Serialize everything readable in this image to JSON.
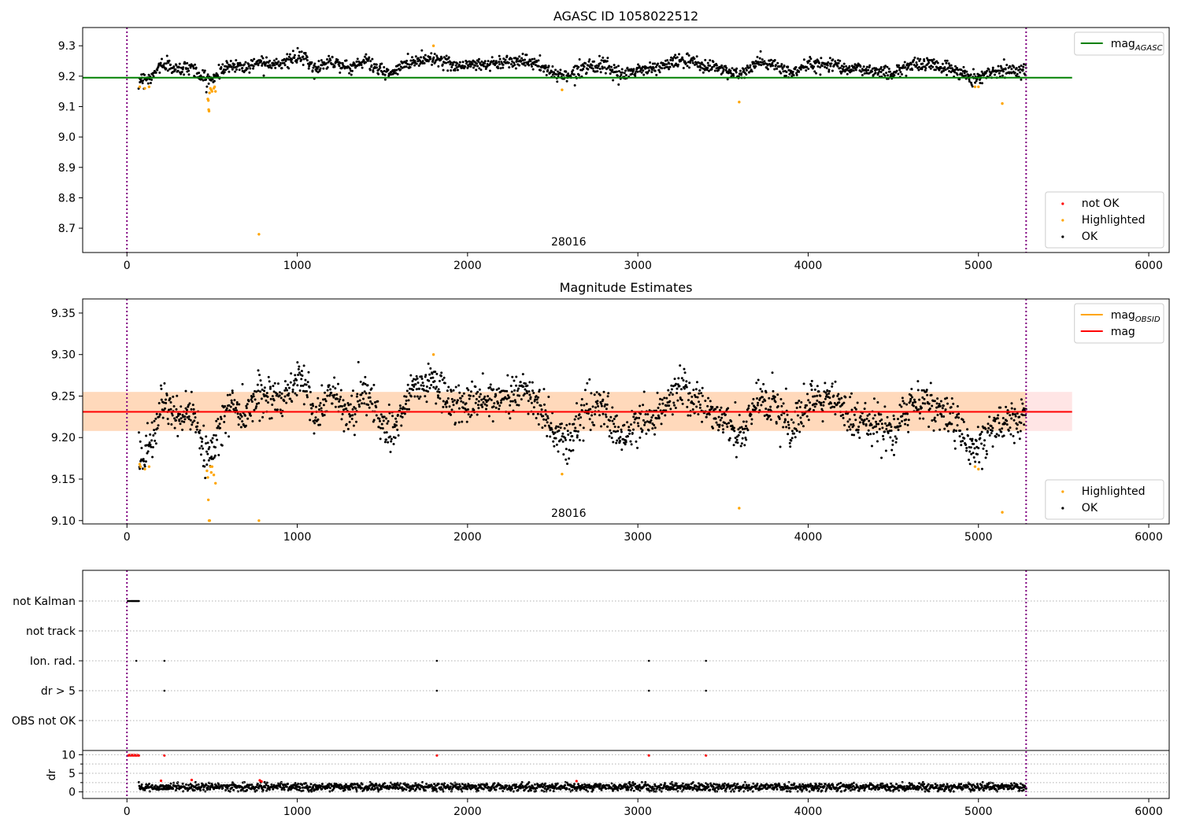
{
  "chart_data": [
    {
      "type": "scatter",
      "title": "AGASC ID 1058022512",
      "xlim": [
        -260,
        6120
      ],
      "ylim": [
        8.62,
        9.36
      ],
      "x_ticks": [
        0,
        1000,
        2000,
        3000,
        4000,
        5000,
        6000
      ],
      "y_ticks": [
        8.7,
        8.8,
        8.9,
        9.0,
        9.1,
        9.2,
        9.3
      ],
      "y_tick_labels": [
        "8.7",
        "8.8",
        "8.9",
        "9.0",
        "9.1",
        "9.2",
        "9.3"
      ],
      "obsid_label": "28016",
      "obsid_label_x": 2640,
      "obs_bounds": [
        0,
        5280
      ],
      "hline": {
        "name": "mag_AGASC",
        "value": 9.195,
        "color": "#008000",
        "x_range": [
          -260,
          5550
        ]
      },
      "legend_lines": [
        {
          "label": "mag",
          "sub": "AGASC",
          "color": "#008000"
        }
      ],
      "legend_points": [
        {
          "label": "not OK",
          "color": "#ff0000"
        },
        {
          "label": "Highlighted",
          "color": "#ffa500"
        },
        {
          "label": "OK",
          "color": "#000000"
        }
      ],
      "series": [
        {
          "name": "OK",
          "color": "#000000",
          "mean": 9.232,
          "offset": -0.001,
          "scale": 0.8,
          "spread": 0.011,
          "count": 1700,
          "x_range": [
            70,
            5280
          ],
          "anchors": [
            [
              70,
              9.18
            ],
            [
              150,
              9.19
            ],
            [
              200,
              9.245
            ],
            [
              300,
              9.22
            ],
            [
              380,
              9.235
            ],
            [
              440,
              9.185
            ],
            [
              500,
              9.18
            ],
            [
              550,
              9.215
            ],
            [
              620,
              9.24
            ],
            [
              700,
              9.23
            ],
            [
              780,
              9.255
            ],
            [
              900,
              9.245
            ],
            [
              1000,
              9.27
            ],
            [
              1050,
              9.265
            ],
            [
              1100,
              9.22
            ],
            [
              1200,
              9.26
            ],
            [
              1300,
              9.225
            ],
            [
              1400,
              9.26
            ],
            [
              1500,
              9.21
            ],
            [
              1560,
              9.205
            ],
            [
              1650,
              9.25
            ],
            [
              1800,
              9.27
            ],
            [
              1900,
              9.24
            ],
            [
              2000,
              9.24
            ],
            [
              2150,
              9.245
            ],
            [
              2300,
              9.26
            ],
            [
              2400,
              9.245
            ],
            [
              2500,
              9.205
            ],
            [
              2600,
              9.195
            ],
            [
              2700,
              9.24
            ],
            [
              2800,
              9.235
            ],
            [
              2900,
              9.195
            ],
            [
              3000,
              9.22
            ],
            [
              3100,
              9.225
            ],
            [
              3250,
              9.26
            ],
            [
              3400,
              9.235
            ],
            [
              3500,
              9.225
            ],
            [
              3600,
              9.195
            ],
            [
              3700,
              9.25
            ],
            [
              3800,
              9.24
            ],
            [
              3900,
              9.205
            ],
            [
              4000,
              9.24
            ],
            [
              4150,
              9.245
            ],
            [
              4250,
              9.225
            ],
            [
              4400,
              9.215
            ],
            [
              4500,
              9.205
            ],
            [
              4600,
              9.24
            ],
            [
              4700,
              9.245
            ],
            [
              4850,
              9.22
            ],
            [
              4980,
              9.185
            ],
            [
              5100,
              9.215
            ],
            [
              5280,
              9.225
            ]
          ]
        },
        {
          "name": "Highlighted",
          "color": "#ffa500",
          "points": [
            [
              75,
              9.165
            ],
            [
              105,
              9.16
            ],
            [
              130,
              9.165
            ],
            [
              475,
              9.125
            ],
            [
              478,
              9.12
            ],
            [
              480,
              9.09
            ],
            [
              482,
              9.085
            ],
            [
              485,
              9.145
            ],
            [
              490,
              9.16
            ],
            [
              495,
              9.155
            ],
            [
              500,
              9.15
            ],
            [
              510,
              9.16
            ],
            [
              515,
              9.165
            ],
            [
              520,
              9.15
            ],
            [
              775,
              8.68
            ],
            [
              1800,
              9.3
            ],
            [
              2555,
              9.155
            ],
            [
              3595,
              9.115
            ],
            [
              4980,
              9.165
            ],
            [
              5000,
              9.165
            ],
            [
              5140,
              9.11
            ]
          ]
        }
      ]
    },
    {
      "type": "scatter",
      "title": "Magnitude Estimates",
      "xlim": [
        -260,
        6120
      ],
      "ylim": [
        9.096,
        9.367
      ],
      "x_ticks": [
        0,
        1000,
        2000,
        3000,
        4000,
        5000,
        6000
      ],
      "y_ticks": [
        9.1,
        9.15,
        9.2,
        9.25,
        9.3,
        9.35
      ],
      "y_tick_labels": [
        "9.10",
        "9.15",
        "9.20",
        "9.25",
        "9.30",
        "9.35"
      ],
      "obsid_label": "28016",
      "obsid_label_x": 2640,
      "obs_bounds": [
        0,
        5280
      ],
      "bands": [
        {
          "name": "mag band",
          "low": 9.208,
          "high": 9.255,
          "color": "#ff0000",
          "opacity": 0.1,
          "x_range": [
            -260,
            5550
          ]
        },
        {
          "name": "mag_OBSID band",
          "low": 9.208,
          "high": 9.255,
          "color": "#ffa500",
          "opacity": 0.18,
          "x_range": [
            -260,
            5280
          ]
        }
      ],
      "lines": [
        {
          "name": "mag_OBSID",
          "value": 9.231,
          "color": "#ffa500",
          "x_range": [
            -260,
            5280
          ]
        },
        {
          "name": "mag",
          "value": 9.231,
          "color": "#ff0000",
          "x_range": [
            -260,
            5550
          ]
        }
      ],
      "legend_lines": [
        {
          "label": "mag",
          "sub": "OBSID",
          "color": "#ffa500"
        },
        {
          "label": "mag",
          "sub": "",
          "color": "#ff0000"
        }
      ],
      "legend_points": [
        {
          "label": "Highlighted",
          "color": "#ffa500"
        },
        {
          "label": "OK",
          "color": "#000000"
        }
      ],
      "series": [
        {
          "name": "OK",
          "color": "#000000",
          "mean": 9.232,
          "offset": 0,
          "scale": 1.0,
          "spread": 0.012,
          "count": 1900,
          "x_range": [
            70,
            5280
          ],
          "anchors": [
            [
              70,
              9.18
            ],
            [
              150,
              9.19
            ],
            [
              200,
              9.245
            ],
            [
              300,
              9.22
            ],
            [
              380,
              9.235
            ],
            [
              440,
              9.185
            ],
            [
              500,
              9.18
            ],
            [
              550,
              9.215
            ],
            [
              620,
              9.24
            ],
            [
              700,
              9.23
            ],
            [
              780,
              9.255
            ],
            [
              900,
              9.245
            ],
            [
              1000,
              9.27
            ],
            [
              1050,
              9.265
            ],
            [
              1100,
              9.22
            ],
            [
              1200,
              9.26
            ],
            [
              1300,
              9.225
            ],
            [
              1400,
              9.26
            ],
            [
              1500,
              9.21
            ],
            [
              1560,
              9.205
            ],
            [
              1650,
              9.25
            ],
            [
              1800,
              9.27
            ],
            [
              1900,
              9.24
            ],
            [
              2000,
              9.24
            ],
            [
              2150,
              9.245
            ],
            [
              2300,
              9.26
            ],
            [
              2400,
              9.245
            ],
            [
              2500,
              9.205
            ],
            [
              2600,
              9.195
            ],
            [
              2700,
              9.24
            ],
            [
              2800,
              9.235
            ],
            [
              2900,
              9.195
            ],
            [
              3000,
              9.22
            ],
            [
              3100,
              9.225
            ],
            [
              3250,
              9.26
            ],
            [
              3400,
              9.235
            ],
            [
              3500,
              9.225
            ],
            [
              3600,
              9.195
            ],
            [
              3700,
              9.25
            ],
            [
              3800,
              9.24
            ],
            [
              3900,
              9.205
            ],
            [
              4000,
              9.24
            ],
            [
              4150,
              9.245
            ],
            [
              4250,
              9.225
            ],
            [
              4400,
              9.215
            ],
            [
              4500,
              9.205
            ],
            [
              4600,
              9.24
            ],
            [
              4700,
              9.245
            ],
            [
              4850,
              9.22
            ],
            [
              4980,
              9.185
            ],
            [
              5100,
              9.215
            ],
            [
              5280,
              9.225
            ]
          ]
        },
        {
          "name": "Highlighted",
          "color": "#ffa500",
          "points": [
            [
              75,
              9.168
            ],
            [
              80,
              9.165
            ],
            [
              105,
              9.162
            ],
            [
              130,
              9.165
            ],
            [
              470,
              9.16
            ],
            [
              475,
              9.152
            ],
            [
              478,
              9.125
            ],
            [
              482,
              9.1
            ],
            [
              486,
              9.1
            ],
            [
              490,
              9.165
            ],
            [
              495,
              9.158
            ],
            [
              500,
              9.165
            ],
            [
              510,
              9.155
            ],
            [
              520,
              9.145
            ],
            [
              775,
              9.1
            ],
            [
              1800,
              9.3
            ],
            [
              2555,
              9.156
            ],
            [
              3595,
              9.115
            ],
            [
              4980,
              9.165
            ],
            [
              5000,
              9.162
            ],
            [
              5140,
              9.11
            ]
          ]
        }
      ]
    },
    {
      "type": "scatter",
      "title": "",
      "xlim": [
        -260,
        6120
      ],
      "x_ticks": [
        0,
        1000,
        2000,
        3000,
        4000,
        5000,
        6000
      ],
      "obs_bounds": [
        0,
        5280
      ],
      "flag_rows": [
        "not Kalman",
        "not track",
        "Ion. rad.",
        "dr > 5",
        "OBS not OK"
      ],
      "flag_points": {
        "not Kalman": [
          5,
          12,
          18,
          25,
          30,
          35,
          40,
          45,
          50,
          55,
          60,
          65,
          70
        ],
        "not track": [],
        "Ion. rad.": [
          55,
          220,
          1820,
          3065,
          3400
        ],
        "dr > 5": [
          220,
          1820,
          3065,
          3400
        ],
        "OBS not OK": []
      },
      "dr_ylabel": "dr",
      "dr_ylim": [
        -0.5,
        10.5
      ],
      "dr_y_ticks": [
        0,
        5,
        10
      ],
      "dr_minor_ticks": [
        2.5,
        7.5
      ],
      "dr_series": {
        "color": "#000000",
        "count": 1800,
        "x_range": [
          70,
          5280
        ],
        "mean": 1.3,
        "spread": 0.55
      },
      "dr_red_points": [
        [
          5,
          9.8
        ],
        [
          10,
          9.8
        ],
        [
          15,
          9.9
        ],
        [
          20,
          9.8
        ],
        [
          25,
          9.9
        ],
        [
          30,
          9.8
        ],
        [
          35,
          9.9
        ],
        [
          40,
          9.8
        ],
        [
          45,
          9.9
        ],
        [
          50,
          9.8
        ],
        [
          55,
          9.8
        ],
        [
          60,
          9.9
        ],
        [
          65,
          9.8
        ],
        [
          70,
          9.8
        ],
        [
          220,
          9.8
        ],
        [
          1820,
          9.8
        ],
        [
          3065,
          9.8
        ],
        [
          3400,
          9.8
        ],
        [
          200,
          3.0
        ],
        [
          380,
          3.2
        ],
        [
          780,
          3.1
        ],
        [
          790,
          2.8
        ],
        [
          2640,
          2.9
        ]
      ]
    }
  ]
}
